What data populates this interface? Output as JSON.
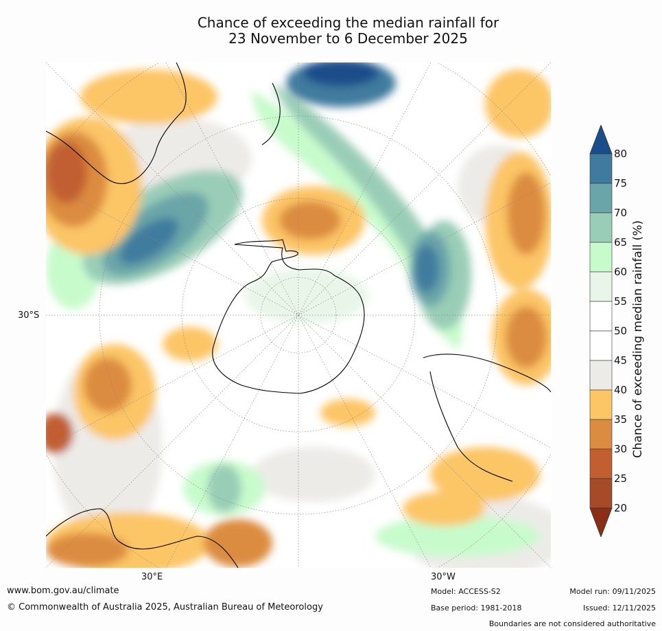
{
  "title": {
    "line1": "Chance of exceeding the median rainfall for",
    "line2": "23 November to 6 December 2025"
  },
  "map": {
    "projection": "South polar stereographic",
    "labels": {
      "left_lat": "30°S",
      "bottom_left_lon": "30°E",
      "bottom_right_lon": "30°W"
    },
    "continents": [
      "Antarctica",
      "Australia",
      "New Zealand",
      "South America",
      "Africa"
    ]
  },
  "colorbar": {
    "title": "Chance of exceeding median rainfall (%)",
    "ticks": [
      "20",
      "25",
      "30",
      "35",
      "40",
      "45",
      "50",
      "55",
      "60",
      "65",
      "70",
      "75",
      "80"
    ],
    "colors": {
      "below20": "#8b2e16",
      "20-25": "#a64a28",
      "25-30": "#c25f30",
      "30-35": "#dc8c41",
      "35-40": "#fcc566",
      "40-45": "#ecebe8",
      "45-50": "#ffffff",
      "50-55": "#ffffff",
      "55-60": "#e8f5e8",
      "60-65": "#c8fbcc",
      "65-70": "#9acdb7",
      "70-75": "#6aa5a9",
      "75-80": "#3f7b9e",
      "above80": "#1a4e8a"
    }
  },
  "footer": {
    "website": "www.bom.gov.au/climate",
    "copyright": "© Commonwealth of Australia 2025, Australian Bureau of Meteorology",
    "model": "Model: ACCESS-S2",
    "base_period": "Base period: 1981-2018",
    "model_run": "Model run: 09/11/2025",
    "issued": "Issued: 12/11/2025",
    "disclaimer": "Boundaries are not considered authoritative"
  }
}
